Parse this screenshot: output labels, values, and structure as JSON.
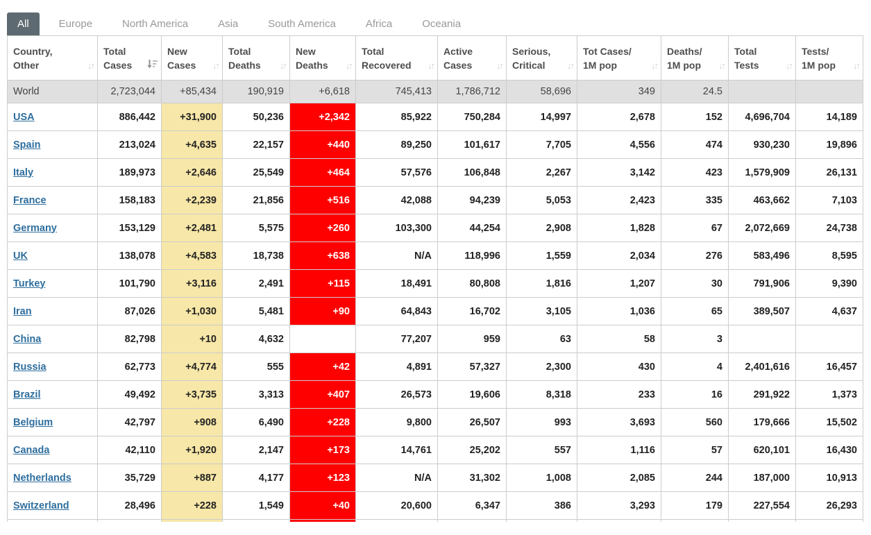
{
  "tabs": [
    {
      "label": "All",
      "active": true
    },
    {
      "label": "Europe",
      "active": false
    },
    {
      "label": "North America",
      "active": false
    },
    {
      "label": "Asia",
      "active": false
    },
    {
      "label": "South America",
      "active": false
    },
    {
      "label": "Africa",
      "active": false
    },
    {
      "label": "Oceania",
      "active": false
    }
  ],
  "colors": {
    "active_tab_bg": "#5d6a71",
    "inactive_tab_text": "#999999",
    "link_blue": "#2e6e9e",
    "new_cases_highlight": "#f7e7a8",
    "new_deaths_highlight": "#ff0000",
    "world_row_bg": "#e0e0e0"
  },
  "table": {
    "columns": [
      {
        "line1": "Country,",
        "line2": "Other",
        "sort": "unsorted"
      },
      {
        "line1": "Total",
        "line2": "Cases",
        "sort": "desc"
      },
      {
        "line1": "New",
        "line2": "Cases",
        "sort": "unsorted"
      },
      {
        "line1": "Total",
        "line2": "Deaths",
        "sort": "unsorted"
      },
      {
        "line1": "New",
        "line2": "Deaths",
        "sort": "unsorted"
      },
      {
        "line1": "Total",
        "line2": "Recovered",
        "sort": "unsorted"
      },
      {
        "line1": "Active",
        "line2": "Cases",
        "sort": "unsorted"
      },
      {
        "line1": "Serious,",
        "line2": "Critical",
        "sort": "unsorted"
      },
      {
        "line1": "Tot Cases/",
        "line2": "1M pop",
        "sort": "unsorted"
      },
      {
        "line1": "Deaths/",
        "line2": "1M pop",
        "sort": "unsorted"
      },
      {
        "line1": "Total",
        "line2": "Tests",
        "sort": "unsorted"
      },
      {
        "line1": "Tests/",
        "line2": "1M pop",
        "sort": "unsorted"
      }
    ],
    "world_row": {
      "label": "World",
      "values": [
        "2,723,044",
        "+85,434",
        "190,919",
        "+6,618",
        "745,413",
        "1,786,712",
        "58,696",
        "349",
        "24.5",
        "",
        ""
      ]
    },
    "rows": [
      {
        "country": "USA",
        "values": [
          "886,442",
          "+31,900",
          "50,236",
          "+2,342",
          "85,922",
          "750,284",
          "14,997",
          "2,678",
          "152",
          "4,696,704",
          "14,189"
        ]
      },
      {
        "country": "Spain",
        "values": [
          "213,024",
          "+4,635",
          "22,157",
          "+440",
          "89,250",
          "101,617",
          "7,705",
          "4,556",
          "474",
          "930,230",
          "19,896"
        ]
      },
      {
        "country": "Italy",
        "values": [
          "189,973",
          "+2,646",
          "25,549",
          "+464",
          "57,576",
          "106,848",
          "2,267",
          "3,142",
          "423",
          "1,579,909",
          "26,131"
        ]
      },
      {
        "country": "France",
        "values": [
          "158,183",
          "+2,239",
          "21,856",
          "+516",
          "42,088",
          "94,239",
          "5,053",
          "2,423",
          "335",
          "463,662",
          "7,103"
        ]
      },
      {
        "country": "Germany",
        "values": [
          "153,129",
          "+2,481",
          "5,575",
          "+260",
          "103,300",
          "44,254",
          "2,908",
          "1,828",
          "67",
          "2,072,669",
          "24,738"
        ]
      },
      {
        "country": "UK",
        "values": [
          "138,078",
          "+4,583",
          "18,738",
          "+638",
          "N/A",
          "118,996",
          "1,559",
          "2,034",
          "276",
          "583,496",
          "8,595"
        ]
      },
      {
        "country": "Turkey",
        "values": [
          "101,790",
          "+3,116",
          "2,491",
          "+115",
          "18,491",
          "80,808",
          "1,816",
          "1,207",
          "30",
          "791,906",
          "9,390"
        ]
      },
      {
        "country": "Iran",
        "values": [
          "87,026",
          "+1,030",
          "5,481",
          "+90",
          "64,843",
          "16,702",
          "3,105",
          "1,036",
          "65",
          "389,507",
          "4,637"
        ]
      },
      {
        "country": "China",
        "values": [
          "82,798",
          "+10",
          "4,632",
          "",
          "77,207",
          "959",
          "63",
          "58",
          "3",
          "",
          ""
        ]
      },
      {
        "country": "Russia",
        "values": [
          "62,773",
          "+4,774",
          "555",
          "+42",
          "4,891",
          "57,327",
          "2,300",
          "430",
          "4",
          "2,401,616",
          "16,457"
        ]
      },
      {
        "country": "Brazil",
        "values": [
          "49,492",
          "+3,735",
          "3,313",
          "+407",
          "26,573",
          "19,606",
          "8,318",
          "233",
          "16",
          "291,922",
          "1,373"
        ]
      },
      {
        "country": "Belgium",
        "values": [
          "42,797",
          "+908",
          "6,490",
          "+228",
          "9,800",
          "26,507",
          "993",
          "3,693",
          "560",
          "179,666",
          "15,502"
        ]
      },
      {
        "country": "Canada",
        "values": [
          "42,110",
          "+1,920",
          "2,147",
          "+173",
          "14,761",
          "25,202",
          "557",
          "1,116",
          "57",
          "620,101",
          "16,430"
        ]
      },
      {
        "country": "Netherlands",
        "values": [
          "35,729",
          "+887",
          "4,177",
          "+123",
          "N/A",
          "31,302",
          "1,008",
          "2,085",
          "244",
          "187,000",
          "10,913"
        ]
      },
      {
        "country": "Switzerland",
        "values": [
          "28,496",
          "+228",
          "1,549",
          "+40",
          "20,600",
          "6,347",
          "386",
          "3,293",
          "179",
          "227,554",
          "26,293"
        ]
      }
    ],
    "world_label": "World",
    "cutoff_row_visible": true
  }
}
